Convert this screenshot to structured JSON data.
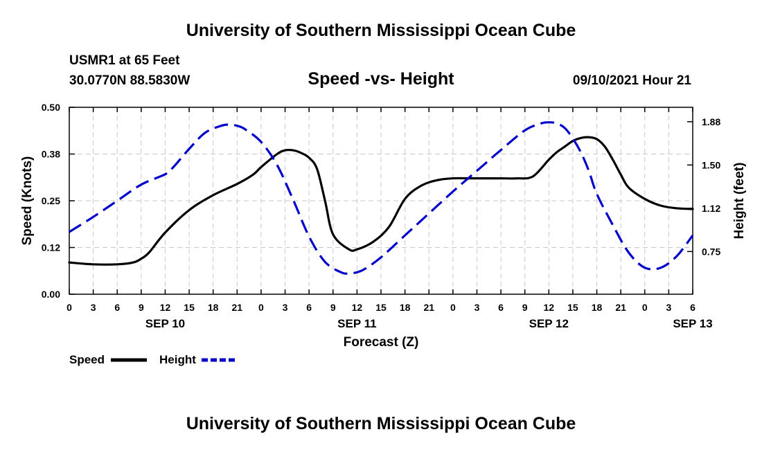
{
  "header": {
    "title": "University of Southern Mississippi Ocean Cube",
    "station": "USMR1 at 65 Feet",
    "coordinates": "30.0770N  88.5830W",
    "chart_title": "Speed -vs- Height",
    "date_hour": "09/10/2021 Hour 21"
  },
  "footer": {
    "title": "University of Southern Mississippi Ocean Cube"
  },
  "legend": {
    "speed_label": "Speed",
    "height_label": "Height"
  },
  "colors": {
    "speed": "#000000",
    "height": "#0000cc",
    "grid": "#c8c8c8"
  },
  "chart_data": {
    "type": "line",
    "title": "Speed -vs- Height",
    "xlabel": "Forecast (Z)",
    "ylabel": "Speed (Knots)",
    "y2label": "Height (feet)",
    "x_range_hours": [
      0,
      78
    ],
    "ylim": [
      0,
      0.5
    ],
    "y2lim": [
      0.38,
      2.0
    ],
    "y_ticks": [
      0.0,
      0.125,
      0.25,
      0.375,
      0.5
    ],
    "y_tick_labels": [
      "0.00",
      "0.12",
      "0.25",
      "0.38",
      "0.50"
    ],
    "y2_ticks": [
      0.75,
      1.125,
      1.5,
      1.875
    ],
    "y2_tick_labels": [
      "0.75",
      "1.12",
      "1.50",
      "1.88"
    ],
    "x_tick_hours": [
      0,
      3,
      6,
      9,
      12,
      15,
      18,
      21,
      24,
      27,
      30,
      33,
      36,
      39,
      42,
      45,
      48,
      51,
      54,
      57,
      60,
      63,
      66,
      69,
      72,
      75,
      78
    ],
    "x_tick_labels": [
      "0",
      "3",
      "6",
      "9",
      "12",
      "15",
      "18",
      "21",
      "0",
      "3",
      "6",
      "9",
      "12",
      "15",
      "18",
      "21",
      "0",
      "3",
      "6",
      "9",
      "12",
      "15",
      "18",
      "21",
      "0",
      "3",
      "6"
    ],
    "date_labels": [
      {
        "hour": 12,
        "label": "SEP 10"
      },
      {
        "hour": 36,
        "label": "SEP 11"
      },
      {
        "hour": 60,
        "label": "SEP 12"
      },
      {
        "hour": 78,
        "label": "SEP 13"
      }
    ],
    "grid": true,
    "series": [
      {
        "name": "Speed",
        "axis": "left",
        "style": "solid",
        "x": [
          0,
          3,
          6,
          8,
          9,
          10,
          12,
          15,
          18,
          21,
          23,
          24,
          26,
          27,
          28,
          29,
          30,
          31,
          32,
          33,
          35,
          36,
          38,
          40,
          42,
          44,
          46,
          48,
          50,
          52,
          54,
          56,
          58,
          60,
          61,
          62,
          63,
          64,
          65,
          66,
          67,
          68,
          69,
          70,
          72,
          74,
          76,
          78
        ],
        "values": [
          0.085,
          0.08,
          0.08,
          0.085,
          0.095,
          0.112,
          0.165,
          0.225,
          0.265,
          0.295,
          0.32,
          0.34,
          0.375,
          0.385,
          0.385,
          0.378,
          0.365,
          0.335,
          0.25,
          0.16,
          0.12,
          0.12,
          0.14,
          0.18,
          0.255,
          0.29,
          0.305,
          0.31,
          0.31,
          0.31,
          0.31,
          0.31,
          0.315,
          0.36,
          0.38,
          0.395,
          0.41,
          0.418,
          0.42,
          0.415,
          0.395,
          0.36,
          0.32,
          0.285,
          0.255,
          0.237,
          0.23,
          0.228
        ]
      },
      {
        "name": "Height",
        "axis": "right",
        "style": "dashed",
        "x": [
          0,
          3,
          6,
          9,
          12,
          13,
          15,
          17,
          19,
          20,
          21,
          22,
          24,
          26,
          28,
          30,
          32,
          34,
          35,
          36,
          37,
          39,
          42,
          45,
          48,
          51,
          54,
          57,
          59,
          60,
          61,
          62,
          63,
          64,
          65,
          66,
          68,
          70,
          72,
          74,
          76,
          78
        ],
        "values": [
          0.92,
          1.05,
          1.19,
          1.33,
          1.42,
          1.48,
          1.64,
          1.78,
          1.84,
          1.85,
          1.84,
          1.81,
          1.7,
          1.5,
          1.2,
          0.88,
          0.66,
          0.57,
          0.56,
          0.57,
          0.6,
          0.7,
          0.89,
          1.08,
          1.27,
          1.45,
          1.63,
          1.8,
          1.86,
          1.87,
          1.86,
          1.82,
          1.73,
          1.61,
          1.45,
          1.25,
          0.98,
          0.74,
          0.61,
          0.61,
          0.71,
          0.89
        ]
      }
    ]
  }
}
